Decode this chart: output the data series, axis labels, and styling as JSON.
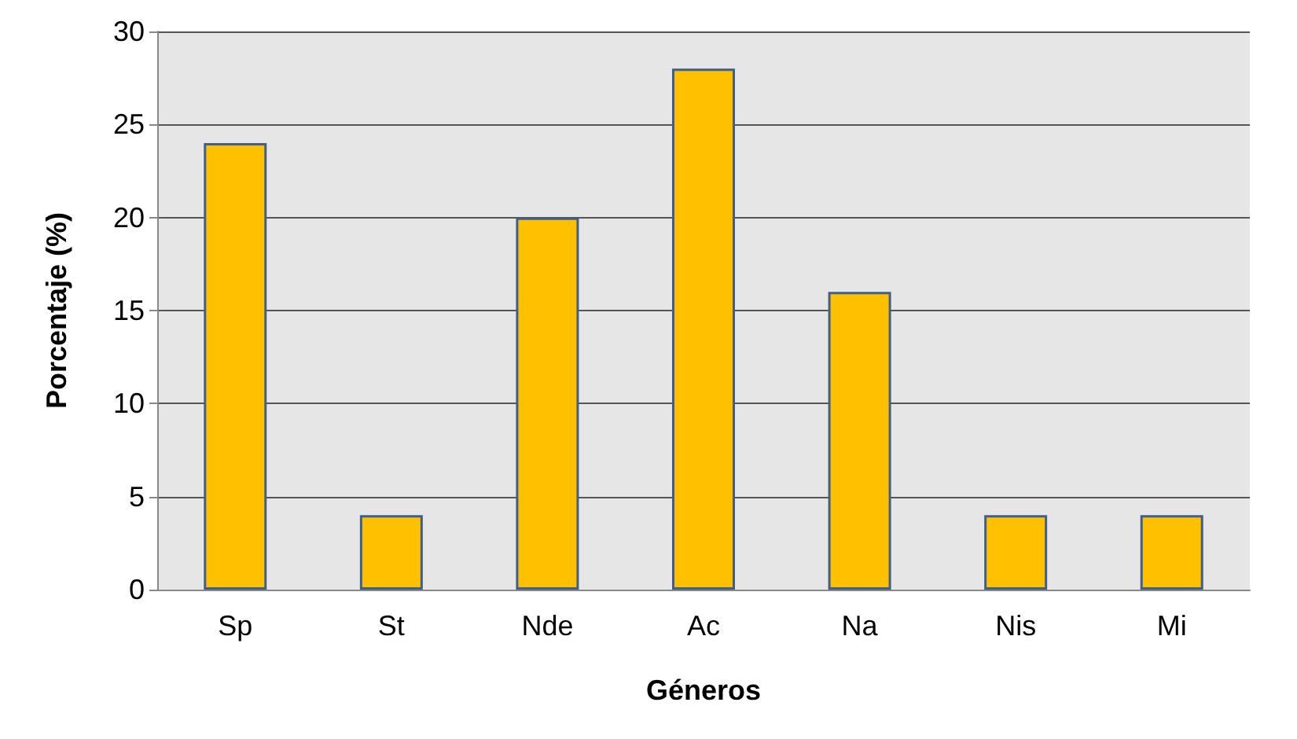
{
  "chart_data": {
    "type": "bar",
    "xlabel": "Géneros",
    "ylabel": "Porcentaje (%)",
    "categories": [
      "Sp",
      "St",
      "Nde",
      "Ac",
      "Na",
      "Nis",
      "Mi"
    ],
    "values": [
      24,
      4,
      20,
      28,
      16,
      4,
      4
    ],
    "color": "#ffc000",
    "ylim": [
      0,
      30
    ],
    "yticks": [
      0,
      5,
      10,
      15,
      20,
      25,
      30
    ],
    "grid": "y"
  }
}
